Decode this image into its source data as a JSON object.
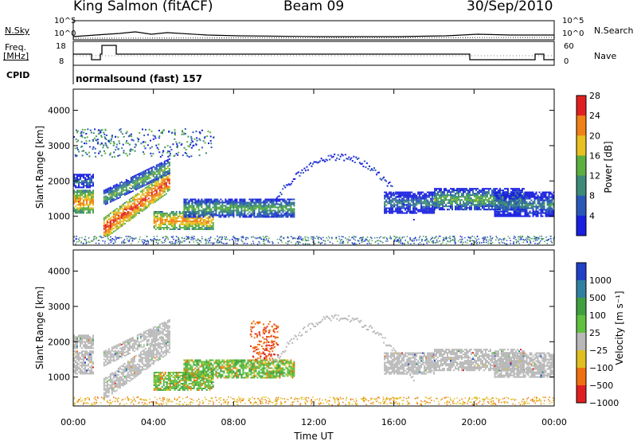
{
  "header": {
    "station": "King Salmon (fitACF)",
    "beam": "Beam 09",
    "date": "30/Sep/2010"
  },
  "status_panel": {
    "nsky_label": "N.Sky",
    "nsky_ticks": [
      "10^5",
      "10^0"
    ],
    "nsearch_label": "N.Search",
    "nsearch_ticks": [
      "10^5",
      "10^0"
    ],
    "freq_label": "Freq.",
    "freq_unit": "[MHz]",
    "freq_ticks": [
      "18",
      "8"
    ],
    "nave_label": "Nave",
    "nave_ticks": [
      "60",
      "0"
    ],
    "cpid_label": "CPID",
    "cpid_value": "normalsound (fast) 157"
  },
  "chart_data": [
    {
      "type": "heatmap",
      "name": "power-panel",
      "ylabel": "Slant Range [km]",
      "yticks": [
        1000,
        2000,
        3000,
        4000
      ],
      "ylim": [
        180,
        4600
      ],
      "xlim": [
        0,
        24
      ],
      "colorbar": {
        "label": "Power [dB]",
        "ticks": [
          "4",
          "8",
          "12",
          "16",
          "20",
          "24",
          "28"
        ],
        "colors": [
          "#1a20e0",
          "#2a58b8",
          "#3c8a78",
          "#5cb040",
          "#e8c020",
          "#f08018",
          "#e02020"
        ]
      },
      "bands": [
        {
          "t0": 0.0,
          "t1": 1.0,
          "r0": 1100,
          "r1": 1750,
          "level": 5
        },
        {
          "t0": 0.0,
          "t1": 1.0,
          "r0": 1800,
          "r1": 2200,
          "level": 2
        },
        {
          "t0": 1.5,
          "t1": 4.8,
          "r0": 1050,
          "r1": 1650,
          "level": 6
        },
        {
          "t0": 1.5,
          "t1": 4.8,
          "r0": 1750,
          "r1": 2200,
          "level": 3
        },
        {
          "t0": 4.0,
          "t1": 7.0,
          "r0": 650,
          "r1": 1150,
          "level": 5
        },
        {
          "t0": 5.5,
          "t1": 11.0,
          "r0": 1000,
          "r1": 1500,
          "level": 3
        },
        {
          "t0": 15.5,
          "t1": 18.0,
          "r0": 1100,
          "r1": 1700,
          "level": 2
        },
        {
          "t0": 18.0,
          "t1": 22.5,
          "r0": 1200,
          "r1": 1800,
          "level": 3
        },
        {
          "t0": 21.0,
          "t1": 24.0,
          "r0": 1000,
          "r1": 1700,
          "level": 2
        }
      ]
    },
    {
      "type": "heatmap",
      "name": "velocity-panel",
      "ylabel": "Slant Range [km]",
      "yticks": [
        1000,
        2000,
        3000,
        4000
      ],
      "ylim": [
        180,
        4600
      ],
      "xlim": [
        0,
        24
      ],
      "xlabel": "Time UT",
      "xticks": [
        "00:00",
        "04:00",
        "08:00",
        "12:00",
        "16:00",
        "20:00",
        "00:00"
      ],
      "colorbar": {
        "label": "Velocity [m s⁻¹]",
        "ticks": [
          "1000",
          "500",
          "100",
          "25",
          "−25",
          "−100",
          "−500",
          "−1000"
        ],
        "colors": [
          "#2040c8",
          "#3080a0",
          "#40a040",
          "#60c040",
          "#b8b8b8",
          "#e0c020",
          "#f07010",
          "#e02020"
        ]
      }
    }
  ]
}
